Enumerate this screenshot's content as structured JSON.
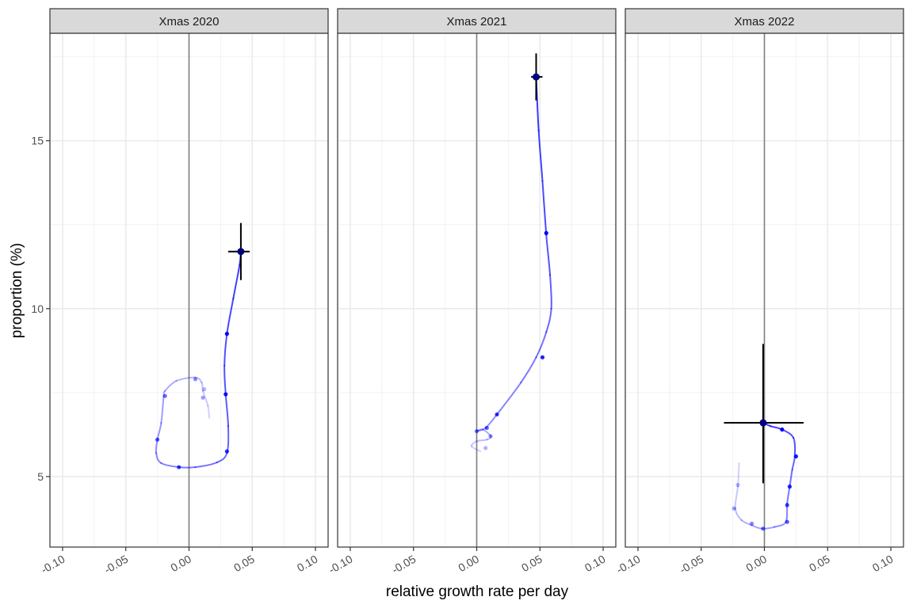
{
  "chart_data": {
    "type": "line",
    "xlabel": "relative growth rate per day",
    "ylabel": "proportion (%)",
    "xlim": [
      -0.11,
      0.11
    ],
    "ylim": [
      2.9,
      18.2
    ],
    "x_ticks": [
      -0.1,
      -0.05,
      0.0,
      0.05,
      0.1
    ],
    "x_tick_labels": [
      "-0.10",
      "-0.05",
      "0.00",
      "0.05",
      "0.10"
    ],
    "y_ticks": [
      5,
      10,
      15
    ],
    "y_tick_labels": [
      "5",
      "10",
      "15"
    ],
    "grid": true,
    "vline_x": 0,
    "colors": {
      "trajectory": "#0000ff",
      "highlight": "#000080",
      "errorbar": "#000000",
      "vline": "#808080",
      "strip": "#d9d9d9"
    },
    "panels": [
      {
        "title": "Xmas 2020",
        "path": [
          [
            0.016,
            6.75
          ],
          [
            0.015,
            7.1
          ],
          [
            0.011,
            7.55
          ],
          [
            0.01,
            7.8
          ],
          [
            0.005,
            7.95
          ],
          [
            -0.01,
            7.85
          ],
          [
            -0.019,
            7.55
          ],
          [
            -0.02,
            7.4
          ],
          [
            -0.022,
            6.6
          ],
          [
            -0.025,
            6.1
          ],
          [
            -0.026,
            5.7
          ],
          [
            -0.022,
            5.4
          ],
          [
            -0.008,
            5.28
          ],
          [
            0.005,
            5.28
          ],
          [
            0.022,
            5.42
          ],
          [
            0.03,
            5.7
          ],
          [
            0.031,
            6.5
          ],
          [
            0.029,
            7.45
          ],
          [
            0.028,
            8.3
          ],
          [
            0.03,
            9.25
          ],
          [
            0.035,
            10.3
          ],
          [
            0.04,
            11.3
          ],
          [
            0.041,
            11.7
          ]
        ],
        "points": [
          [
            0.012,
            7.6
          ],
          [
            0.011,
            7.35
          ],
          [
            0.005,
            7.9
          ],
          [
            -0.019,
            7.4
          ],
          [
            -0.025,
            6.1
          ],
          [
            -0.008,
            5.28
          ],
          [
            0.03,
            5.75
          ],
          [
            0.029,
            7.45
          ],
          [
            0.03,
            9.25
          ]
        ],
        "estimate": {
          "x": 0.041,
          "y": 11.7,
          "x_lo": 0.031,
          "x_hi": 0.048,
          "y_lo": 10.85,
          "y_hi": 12.55
        }
      },
      {
        "title": "Xmas 2021",
        "path": [
          [
            0.003,
            5.75
          ],
          [
            -0.004,
            5.9
          ],
          [
            0.0,
            6.05
          ],
          [
            0.008,
            6.1
          ],
          [
            0.011,
            6.2
          ],
          [
            0.005,
            6.4
          ],
          [
            0.0,
            6.35
          ],
          [
            0.007,
            6.45
          ],
          [
            0.016,
            6.85
          ],
          [
            0.035,
            7.8
          ],
          [
            0.047,
            8.55
          ],
          [
            0.055,
            9.3
          ],
          [
            0.059,
            10.0
          ],
          [
            0.058,
            11.0
          ],
          [
            0.055,
            12.2
          ],
          [
            0.052,
            13.8
          ],
          [
            0.049,
            15.3
          ],
          [
            0.047,
            16.9
          ]
        ],
        "points": [
          [
            0.007,
            5.85
          ],
          [
            0.011,
            6.2
          ],
          [
            0.0,
            6.35
          ],
          [
            0.008,
            6.45
          ],
          [
            0.016,
            6.85
          ],
          [
            0.052,
            8.55
          ],
          [
            0.055,
            12.25
          ]
        ],
        "estimate": {
          "x": 0.047,
          "y": 16.9,
          "x_lo": 0.043,
          "x_hi": 0.052,
          "y_lo": 16.2,
          "y_hi": 17.6
        }
      },
      {
        "title": "Xmas 2022",
        "path": [
          [
            -0.02,
            5.4
          ],
          [
            -0.021,
            4.7
          ],
          [
            -0.023,
            4.05
          ],
          [
            -0.018,
            3.7
          ],
          [
            -0.01,
            3.55
          ],
          [
            -0.002,
            3.45
          ],
          [
            0.008,
            3.5
          ],
          [
            0.017,
            3.65
          ],
          [
            0.018,
            4.2
          ],
          [
            0.02,
            4.7
          ],
          [
            0.022,
            5.2
          ],
          [
            0.024,
            5.6
          ],
          [
            0.023,
            6.15
          ],
          [
            0.014,
            6.4
          ],
          [
            0.005,
            6.5
          ],
          [
            -0.001,
            6.6
          ]
        ],
        "points": [
          [
            -0.021,
            4.75
          ],
          [
            -0.024,
            4.05
          ],
          [
            -0.01,
            3.6
          ],
          [
            -0.001,
            3.45
          ],
          [
            0.018,
            3.65
          ],
          [
            0.018,
            4.15
          ],
          [
            0.02,
            4.7
          ],
          [
            0.025,
            5.6
          ],
          [
            0.014,
            6.4
          ]
        ],
        "estimate": {
          "x": -0.001,
          "y": 6.6,
          "x_lo": -0.032,
          "x_hi": 0.031,
          "y_lo": 4.8,
          "y_hi": 8.95
        }
      }
    ]
  }
}
